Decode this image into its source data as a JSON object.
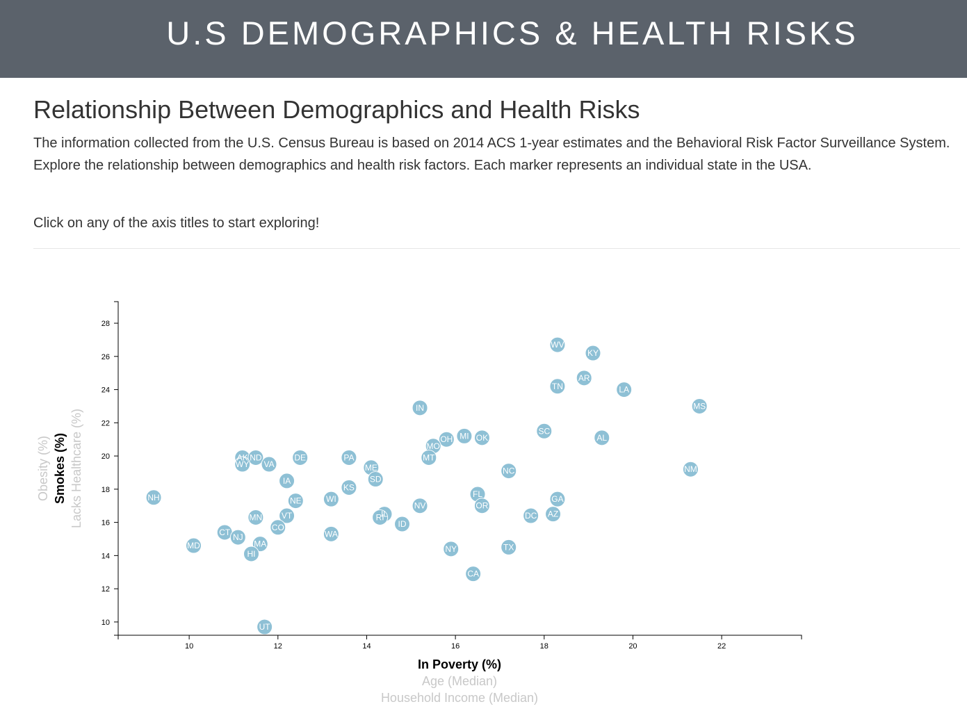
{
  "header": {
    "title": "U.S DEMOGRAPHICS & HEALTH RISKS"
  },
  "main": {
    "heading": "Relationship Between Demographics and Health Risks",
    "intro": "The information collected from the U.S. Census Bureau is based on 2014 ACS 1-year estimates and the Behavioral Risk Factor Surveillance System. Explore the relationship between demographics and health risk factors. Each marker represents an individual state in the USA.",
    "cta": "Click on any of the axis titles to start exploring!"
  },
  "colors": {
    "banner": "#5b626b",
    "marker": "#89bdd3",
    "marker_text": "#ffffff"
  },
  "chart_data": {
    "type": "scatter",
    "xlabel": "In Poverty (%)",
    "ylabel": "Smokes (%)",
    "x_axis_options": [
      {
        "label": "In Poverty (%)",
        "active": true
      },
      {
        "label": "Age (Median)",
        "active": false
      },
      {
        "label": "Household Income (Median)",
        "active": false
      }
    ],
    "y_axis_options": [
      {
        "label": "Smokes (%)",
        "active": true
      },
      {
        "label": "Lacks Healthcare (%)",
        "active": false
      },
      {
        "label": "Obesity (%)",
        "active": false
      }
    ],
    "xlim": [
      8.4,
      23.8
    ],
    "ylim": [
      9.2,
      29.3
    ],
    "x_ticks": [
      10,
      12,
      14,
      16,
      18,
      20,
      22
    ],
    "y_ticks": [
      10,
      12,
      14,
      16,
      18,
      20,
      22,
      24,
      26,
      28
    ],
    "points": [
      {
        "abbr": "WV",
        "x": 18.3,
        "y": 26.7
      },
      {
        "abbr": "KY",
        "x": 19.1,
        "y": 26.2
      },
      {
        "abbr": "AR",
        "x": 18.9,
        "y": 24.7
      },
      {
        "abbr": "TN",
        "x": 18.3,
        "y": 24.2
      },
      {
        "abbr": "LA",
        "x": 19.8,
        "y": 24.0
      },
      {
        "abbr": "MS",
        "x": 21.5,
        "y": 23.0
      },
      {
        "abbr": "IN",
        "x": 15.2,
        "y": 22.9
      },
      {
        "abbr": "SC",
        "x": 18.0,
        "y": 21.5
      },
      {
        "abbr": "AL",
        "x": 19.3,
        "y": 21.1
      },
      {
        "abbr": "MI",
        "x": 16.2,
        "y": 21.2
      },
      {
        "abbr": "OK",
        "x": 16.6,
        "y": 21.1
      },
      {
        "abbr": "OH",
        "x": 15.8,
        "y": 21.0
      },
      {
        "abbr": "MO",
        "x": 15.5,
        "y": 20.6
      },
      {
        "abbr": "MT",
        "x": 15.4,
        "y": 19.9
      },
      {
        "abbr": "AK",
        "x": 11.2,
        "y": 19.9
      },
      {
        "abbr": "ND",
        "x": 11.5,
        "y": 19.9
      },
      {
        "abbr": "WY",
        "x": 11.2,
        "y": 19.5
      },
      {
        "abbr": "VA",
        "x": 11.8,
        "y": 19.5
      },
      {
        "abbr": "DE",
        "x": 12.5,
        "y": 19.9
      },
      {
        "abbr": "PA",
        "x": 13.6,
        "y": 19.9
      },
      {
        "abbr": "ME",
        "x": 14.1,
        "y": 19.3
      },
      {
        "abbr": "SD",
        "x": 14.2,
        "y": 18.6
      },
      {
        "abbr": "NC",
        "x": 17.2,
        "y": 19.1
      },
      {
        "abbr": "NM",
        "x": 21.3,
        "y": 19.2
      },
      {
        "abbr": "IA",
        "x": 12.2,
        "y": 18.5
      },
      {
        "abbr": "KS",
        "x": 13.6,
        "y": 18.1
      },
      {
        "abbr": "NH",
        "x": 9.2,
        "y": 17.5
      },
      {
        "abbr": "WI",
        "x": 13.2,
        "y": 17.4
      },
      {
        "abbr": "NE",
        "x": 12.4,
        "y": 17.3
      },
      {
        "abbr": "FL",
        "x": 16.5,
        "y": 17.7
      },
      {
        "abbr": "GA",
        "x": 18.3,
        "y": 17.4
      },
      {
        "abbr": "OR",
        "x": 16.6,
        "y": 17.0
      },
      {
        "abbr": "NV",
        "x": 15.2,
        "y": 17.0
      },
      {
        "abbr": "IL",
        "x": 14.4,
        "y": 16.5
      },
      {
        "abbr": "RI",
        "x": 14.3,
        "y": 16.3
      },
      {
        "abbr": "ID",
        "x": 14.8,
        "y": 15.9
      },
      {
        "abbr": "VT",
        "x": 12.2,
        "y": 16.4
      },
      {
        "abbr": "MN",
        "x": 11.5,
        "y": 16.3
      },
      {
        "abbr": "CO",
        "x": 12.0,
        "y": 15.7
      },
      {
        "abbr": "DC",
        "x": 17.7,
        "y": 16.4
      },
      {
        "abbr": "AZ",
        "x": 18.2,
        "y": 16.5
      },
      {
        "abbr": "CT",
        "x": 10.8,
        "y": 15.4
      },
      {
        "abbr": "NJ",
        "x": 11.1,
        "y": 15.1
      },
      {
        "abbr": "WA",
        "x": 13.2,
        "y": 15.3
      },
      {
        "abbr": "MD",
        "x": 10.1,
        "y": 14.6
      },
      {
        "abbr": "MA",
        "x": 11.6,
        "y": 14.7
      },
      {
        "abbr": "HI",
        "x": 11.4,
        "y": 14.1
      },
      {
        "abbr": "NY",
        "x": 15.9,
        "y": 14.4
      },
      {
        "abbr": "TX",
        "x": 17.2,
        "y": 14.5
      },
      {
        "abbr": "CA",
        "x": 16.4,
        "y": 12.9
      },
      {
        "abbr": "UT",
        "x": 11.7,
        "y": 9.7
      }
    ]
  }
}
